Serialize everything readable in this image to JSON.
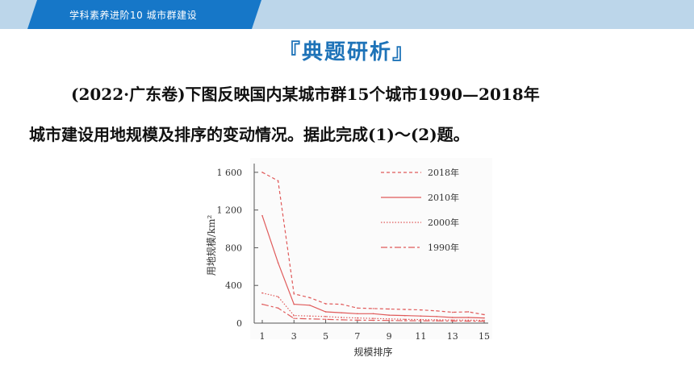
{
  "header": {
    "breadcrumb": "学科素养进阶10    城市群建设"
  },
  "section_heading": "『典题研析』",
  "question": {
    "line1": "(2022·广东卷)下图反映国内某城市群15个城市1990—2018年",
    "line2": "城市建设用地规模及排序的变动情况。据此完成(1)～(2)题。"
  },
  "colors": {
    "topbar_bg": "#bcd6ea",
    "tab_bg": "#1677c8",
    "heading": "#1e73b8",
    "chart_line": "#e05a5a"
  },
  "chart_data": {
    "type": "line",
    "title": "",
    "xlabel": "规模排序",
    "ylabel": "用地规模/km²",
    "x": [
      1,
      2,
      3,
      4,
      5,
      6,
      7,
      8,
      9,
      10,
      11,
      12,
      13,
      14,
      15
    ],
    "x_ticks": [
      "1",
      "3",
      "5",
      "7",
      "9",
      "11",
      "13",
      "15"
    ],
    "y_ticks": [
      "0",
      "400",
      "800",
      "1 200",
      "1 600"
    ],
    "ylim": [
      0,
      1650
    ],
    "xlim": [
      1,
      15
    ],
    "grid": false,
    "legend_position": "top-right",
    "series": [
      {
        "name": "2018年",
        "dash": "4 3",
        "values": [
          1600,
          1510,
          310,
          270,
          205,
          200,
          160,
          155,
          150,
          145,
          140,
          130,
          115,
          120,
          90
        ]
      },
      {
        "name": "2010年",
        "dash": "",
        "values": [
          1140,
          640,
          200,
          190,
          120,
          110,
          100,
          100,
          85,
          80,
          75,
          70,
          60,
          60,
          55
        ]
      },
      {
        "name": "2000年",
        "dash": "1.5 2",
        "values": [
          320,
          280,
          80,
          75,
          70,
          60,
          55,
          50,
          45,
          40,
          38,
          35,
          33,
          32,
          30
        ]
      },
      {
        "name": "1990年",
        "dash": "8 3 3 3",
        "values": [
          200,
          160,
          50,
          45,
          40,
          35,
          32,
          30,
          28,
          26,
          25,
          24,
          22,
          21,
          20
        ]
      }
    ]
  }
}
